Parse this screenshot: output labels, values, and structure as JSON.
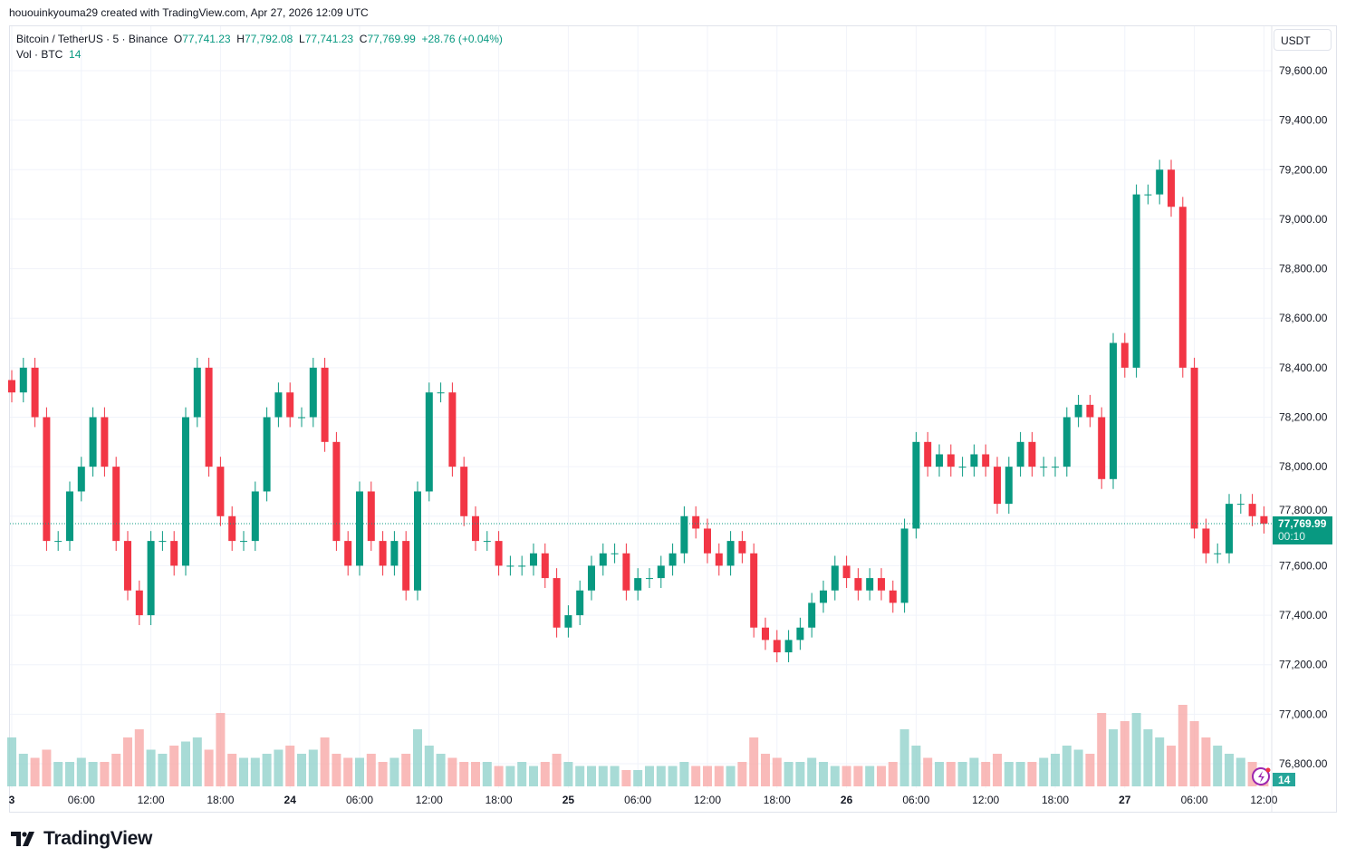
{
  "credit": "hououinkyouma29 created with TradingView.com, Apr 27, 2026 12:09 UTC",
  "legend": {
    "symbol": "Bitcoin / TetherUS · 5 · Binance",
    "o_label": "O",
    "o": "77,741.23",
    "h_label": "H",
    "h": "77,792.08",
    "l_label": "L",
    "l": "77,741.23",
    "c_label": "C",
    "c": "77,769.99",
    "change": "+28.76 (+0.04%)",
    "vol_label": "Vol · BTC",
    "vol": "14"
  },
  "currency_button": "USDT",
  "last_price": {
    "price": "77,769.99",
    "countdown": "00:10",
    "volume": "14"
  },
  "brand": "TradingView",
  "colors": {
    "up": "#089981",
    "down": "#f23645",
    "vol_up": "#92d2cc",
    "vol_down": "#f7a9a7",
    "accent": "#089981"
  },
  "chart_data": {
    "type": "candlestick",
    "interval": "5",
    "ylim": [
      76700,
      79700
    ],
    "price_ticks": [
      "79,600.00",
      "79,400.00",
      "79,200.00",
      "79,000.00",
      "78,800.00",
      "78,600.00",
      "78,400.00",
      "78,200.00",
      "78,000.00",
      "77,800.00",
      "77,600.00",
      "77,400.00",
      "77,200.00",
      "77,000.00",
      "76,800.00"
    ],
    "time_ticks": [
      "3",
      "06:00",
      "12:00",
      "18:00",
      "24",
      "06:00",
      "12:00",
      "18:00",
      "25",
      "06:00",
      "12:00",
      "18:00",
      "26",
      "06:00",
      "12:00",
      "18:00",
      "27",
      "06:00",
      "12:00"
    ],
    "hourly_close": [
      78300,
      78400,
      78200,
      77700,
      77700,
      77900,
      78000,
      78200,
      78000,
      77700,
      77500,
      77400,
      77700,
      77700,
      77600,
      78200,
      78400,
      78000,
      77800,
      77700,
      77700,
      77900,
      78200,
      78300,
      78200,
      78200,
      78400,
      78100,
      77700,
      77600,
      77900,
      77700,
      77600,
      77700,
      77500,
      77900,
      78300,
      78300,
      78000,
      77800,
      77700,
      77700,
      77600,
      77600,
      77600,
      77650,
      77550,
      77350,
      77400,
      77500,
      77600,
      77650,
      77650,
      77500,
      77550,
      77550,
      77600,
      77650,
      77800,
      77750,
      77650,
      77600,
      77700,
      77650,
      77350,
      77300,
      77250,
      77300,
      77350,
      77450,
      77500,
      77600,
      77550,
      77500,
      77550,
      77500,
      77450,
      77750,
      78100,
      78000,
      78050,
      78000,
      78000,
      78050,
      78000,
      77850,
      78000,
      78100,
      78000,
      78000,
      78000,
      78200,
      78250,
      78200,
      77950,
      78500,
      78400,
      79100,
      79100,
      79200,
      79050,
      78400,
      77750,
      77650,
      77650,
      77850,
      77850,
      77800,
      77770
    ],
    "hourly_volume": [
      60,
      40,
      35,
      45,
      30,
      30,
      35,
      30,
      30,
      40,
      60,
      70,
      45,
      40,
      50,
      55,
      60,
      45,
      90,
      40,
      35,
      35,
      40,
      45,
      50,
      40,
      45,
      60,
      40,
      35,
      35,
      40,
      30,
      35,
      40,
      70,
      50,
      40,
      35,
      30,
      30,
      30,
      25,
      25,
      30,
      25,
      30,
      40,
      30,
      25,
      25,
      25,
      25,
      20,
      20,
      25,
      25,
      25,
      30,
      25,
      25,
      25,
      25,
      30,
      60,
      40,
      35,
      30,
      30,
      35,
      30,
      25,
      25,
      25,
      25,
      25,
      30,
      70,
      50,
      35,
      30,
      30,
      30,
      35,
      30,
      40,
      30,
      30,
      30,
      35,
      40,
      50,
      45,
      40,
      90,
      70,
      80,
      90,
      70,
      60,
      50,
      100,
      80,
      60,
      50,
      40,
      35,
      30,
      14
    ]
  }
}
